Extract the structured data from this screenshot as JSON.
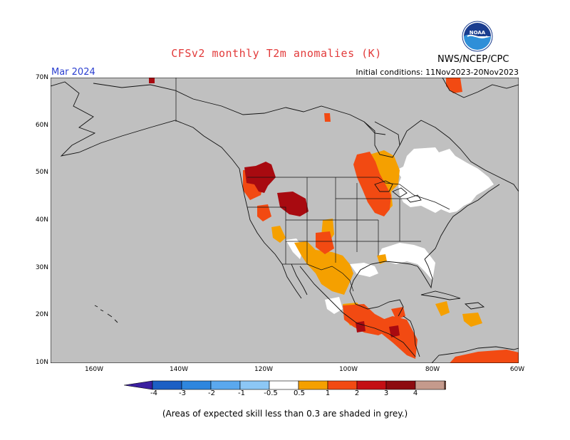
{
  "header": {
    "title": "CFSv2 monthly T2m anomalies (K)",
    "month": "Mar 2024",
    "initial_conditions": "Initial conditions: 11Nov2023-20Nov2023",
    "agency": "NWS/NCEP/CPC",
    "logo_text": "NOAA"
  },
  "map": {
    "lat_labels": [
      "70N",
      "60N",
      "50N",
      "40N",
      "30N",
      "20N",
      "10N"
    ],
    "lon_labels": [
      "160W",
      "140W",
      "120W",
      "100W",
      "80W",
      "60W"
    ]
  },
  "colorbar": {
    "labels": [
      "-4",
      "-3",
      "-2",
      "-1",
      "-0.5",
      "0.5",
      "1",
      "2",
      "3",
      "4"
    ],
    "colors": [
      "#3b1fa0",
      "#1c5fc4",
      "#2e86de",
      "#5aa8ee",
      "#8cc7f5",
      "#ffffff",
      "#f5a000",
      "#f24a12",
      "#c40f14",
      "#8d0c10",
      "#c59a8c",
      "#6e4b3f"
    ]
  },
  "footnote": "(Areas of expected skill less than 0.3 are shaded in grey.)",
  "colors": {
    "grey": "#c0c0c0",
    "orange": "#f5a000",
    "red": "#f24a12",
    "darkred": "#a80a10",
    "white": "#ffffff"
  }
}
